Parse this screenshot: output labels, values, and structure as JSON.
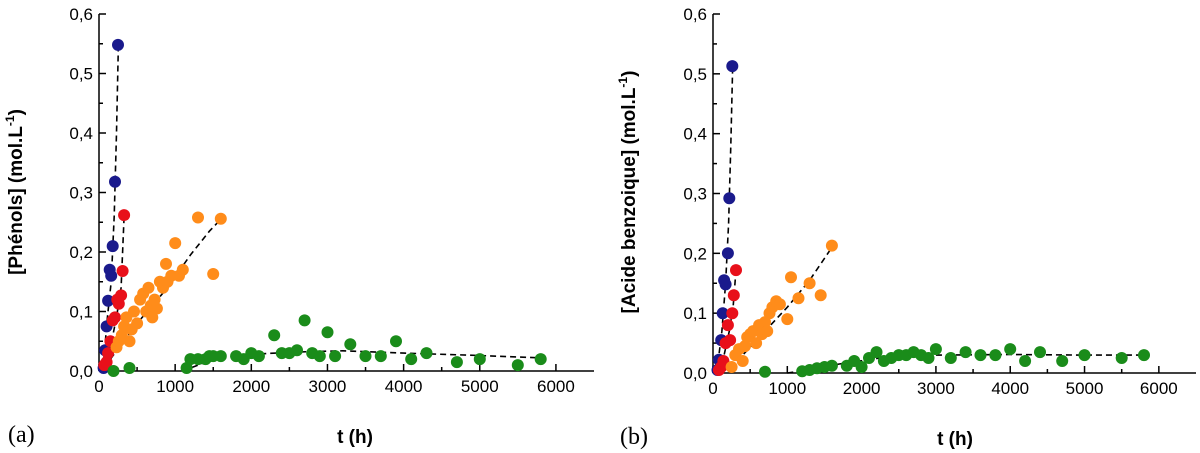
{
  "chart_data": [
    {
      "type": "scatter",
      "panel_label": "(a)",
      "xlabel": "t (h)",
      "ylabel_main": "[Phénols] (mol.L",
      "ylabel_sup": "-1",
      "ylabel_close": ")",
      "xlim": [
        0,
        6500
      ],
      "ylim": [
        0,
        0.6
      ],
      "xticks": [
        0,
        1000,
        2000,
        3000,
        4000,
        5000,
        6000
      ],
      "yticks": [
        0.0,
        0.1,
        0.2,
        0.3,
        0.4,
        0.5,
        0.6
      ],
      "xtick_labels": [
        "0",
        "1000",
        "2000",
        "3000",
        "4000",
        "5000",
        "6000"
      ],
      "ytick_labels": [
        "0,0",
        "0,1",
        "0,2",
        "0,3",
        "0,4",
        "0,5",
        "0,6"
      ],
      "series": [
        {
          "name": "blue",
          "color": "#1a1a8c",
          "points": [
            [
              60,
              0.005
            ],
            [
              80,
              0.035
            ],
            [
              100,
              0.075
            ],
            [
              120,
              0.118
            ],
            [
              140,
              0.17
            ],
            [
              160,
              0.16
            ],
            [
              180,
              0.21
            ],
            [
              210,
              0.318
            ],
            [
              250,
              0.548
            ]
          ],
          "fit": [
            [
              50,
              0
            ],
            [
              110,
              0.09
            ],
            [
              160,
              0.15
            ],
            [
              200,
              0.26
            ],
            [
              230,
              0.4
            ],
            [
              255,
              0.55
            ]
          ]
        },
        {
          "name": "red",
          "color": "#e8101a",
          "points": [
            [
              70,
              0.01
            ],
            [
              100,
              0.015
            ],
            [
              120,
              0.03
            ],
            [
              150,
              0.05
            ],
            [
              180,
              0.085
            ],
            [
              210,
              0.09
            ],
            [
              240,
              0.12
            ],
            [
              260,
              0.113
            ],
            [
              290,
              0.127
            ],
            [
              310,
              0.168
            ],
            [
              330,
              0.262
            ]
          ],
          "fit": [
            [
              50,
              0
            ],
            [
              150,
              0.04
            ],
            [
              230,
              0.09
            ],
            [
              290,
              0.14
            ],
            [
              330,
              0.26
            ]
          ]
        },
        {
          "name": "orange",
          "color": "#ff8c1a",
          "points": [
            [
              230,
              0.04
            ],
            [
              260,
              0.05
            ],
            [
              300,
              0.06
            ],
            [
              330,
              0.075
            ],
            [
              360,
              0.09
            ],
            [
              400,
              0.05
            ],
            [
              430,
              0.07
            ],
            [
              460,
              0.1
            ],
            [
              500,
              0.08
            ],
            [
              540,
              0.12
            ],
            [
              580,
              0.13
            ],
            [
              620,
              0.1
            ],
            [
              650,
              0.14
            ],
            [
              680,
              0.11
            ],
            [
              700,
              0.09
            ],
            [
              730,
              0.12
            ],
            [
              760,
              0.105
            ],
            [
              800,
              0.15
            ],
            [
              840,
              0.14
            ],
            [
              880,
              0.18
            ],
            [
              900,
              0.15
            ],
            [
              950,
              0.16
            ],
            [
              1000,
              0.215
            ],
            [
              1050,
              0.16
            ],
            [
              1100,
              0.17
            ],
            [
              1300,
              0.258
            ],
            [
              1500,
              0.163
            ],
            [
              1600,
              0.256
            ]
          ],
          "fit": [
            [
              150,
              0.02
            ],
            [
              500,
              0.08
            ],
            [
              900,
              0.14
            ],
            [
              1200,
              0.195
            ],
            [
              1450,
              0.235
            ],
            [
              1620,
              0.258
            ]
          ]
        },
        {
          "name": "green",
          "color": "#1a8c1a",
          "points": [
            [
              190,
              0.0
            ],
            [
              400,
              0.005
            ],
            [
              1150,
              0.005
            ],
            [
              1200,
              0.02
            ],
            [
              1300,
              0.02
            ],
            [
              1400,
              0.02
            ],
            [
              1450,
              0.025
            ],
            [
              1500,
              0.025
            ],
            [
              1600,
              0.025
            ],
            [
              1800,
              0.025
            ],
            [
              1900,
              0.02
            ],
            [
              2000,
              0.03
            ],
            [
              2100,
              0.025
            ],
            [
              2300,
              0.06
            ],
            [
              2400,
              0.03
            ],
            [
              2500,
              0.03
            ],
            [
              2600,
              0.035
            ],
            [
              2700,
              0.085
            ],
            [
              2800,
              0.03
            ],
            [
              2900,
              0.025
            ],
            [
              3000,
              0.065
            ],
            [
              3100,
              0.025
            ],
            [
              3300,
              0.045
            ],
            [
              3500,
              0.025
            ],
            [
              3700,
              0.025
            ],
            [
              3900,
              0.05
            ],
            [
              4100,
              0.02
            ],
            [
              4300,
              0.03
            ],
            [
              4700,
              0.015
            ],
            [
              5000,
              0.02
            ],
            [
              5500,
              0.01
            ],
            [
              5800,
              0.02
            ]
          ],
          "fit": [
            [
              1100,
              0.0
            ],
            [
              1300,
              0.01
            ],
            [
              1500,
              0.02
            ],
            [
              2000,
              0.028
            ],
            [
              2600,
              0.032
            ],
            [
              3200,
              0.034
            ],
            [
              4000,
              0.03
            ],
            [
              5000,
              0.026
            ],
            [
              5800,
              0.022
            ]
          ]
        }
      ]
    },
    {
      "type": "scatter",
      "panel_label": "(b)",
      "xlabel": "t (h)",
      "ylabel_main": "[Acide benzoique] (mol.L",
      "ylabel_sup": "-1",
      "ylabel_close": ")",
      "xlim": [
        0,
        6500
      ],
      "ylim": [
        0,
        0.6
      ],
      "xticks": [
        0,
        1000,
        2000,
        3000,
        4000,
        5000,
        6000
      ],
      "yticks": [
        0.0,
        0.1,
        0.2,
        0.3,
        0.4,
        0.5,
        0.6
      ],
      "xtick_labels": [
        "0",
        "1000",
        "2000",
        "3000",
        "4000",
        "5000",
        "6000"
      ],
      "ytick_labels": [
        "0,0",
        "0,1",
        "0,2",
        "0,3",
        "0,4",
        "0,5",
        "0,6"
      ],
      "series": [
        {
          "name": "blue",
          "color": "#1a1a8c",
          "points": [
            [
              60,
              0.005
            ],
            [
              80,
              0.022
            ],
            [
              110,
              0.055
            ],
            [
              130,
              0.1
            ],
            [
              150,
              0.155
            ],
            [
              170,
              0.148
            ],
            [
              200,
              0.2
            ],
            [
              220,
              0.292
            ],
            [
              260,
              0.513
            ]
          ],
          "fit": [
            [
              50,
              0
            ],
            [
              120,
              0.07
            ],
            [
              170,
              0.15
            ],
            [
              210,
              0.25
            ],
            [
              240,
              0.38
            ],
            [
              265,
              0.515
            ]
          ]
        },
        {
          "name": "red",
          "color": "#e8101a",
          "points": [
            [
              80,
              0.005
            ],
            [
              110,
              0.01
            ],
            [
              140,
              0.02
            ],
            [
              170,
              0.05
            ],
            [
              200,
              0.08
            ],
            [
              230,
              0.055
            ],
            [
              260,
              0.1
            ],
            [
              280,
              0.13
            ],
            [
              310,
              0.172
            ]
          ],
          "fit": [
            [
              50,
              0
            ],
            [
              150,
              0.03
            ],
            [
              220,
              0.07
            ],
            [
              270,
              0.11
            ],
            [
              310,
              0.172
            ]
          ]
        },
        {
          "name": "orange",
          "color": "#ff8c1a",
          "points": [
            [
              250,
              0.01
            ],
            [
              300,
              0.03
            ],
            [
              350,
              0.04
            ],
            [
              400,
              0.02
            ],
            [
              430,
              0.045
            ],
            [
              460,
              0.06
            ],
            [
              500,
              0.065
            ],
            [
              540,
              0.07
            ],
            [
              580,
              0.05
            ],
            [
              620,
              0.08
            ],
            [
              660,
              0.065
            ],
            [
              700,
              0.085
            ],
            [
              730,
              0.07
            ],
            [
              760,
              0.1
            ],
            [
              800,
              0.11
            ],
            [
              850,
              0.12
            ],
            [
              900,
              0.115
            ],
            [
              1000,
              0.09
            ],
            [
              1050,
              0.16
            ],
            [
              1150,
              0.125
            ],
            [
              1300,
              0.15
            ],
            [
              1450,
              0.13
            ],
            [
              1600,
              0.213
            ]
          ],
          "fit": [
            [
              100,
              0
            ],
            [
              400,
              0.03
            ],
            [
              700,
              0.07
            ],
            [
              1000,
              0.11
            ],
            [
              1300,
              0.155
            ],
            [
              1600,
              0.21
            ]
          ]
        },
        {
          "name": "green",
          "color": "#1a8c1a",
          "points": [
            [
              700,
              0.002
            ],
            [
              1200,
              0.003
            ],
            [
              1300,
              0.005
            ],
            [
              1400,
              0.008
            ],
            [
              1500,
              0.01
            ],
            [
              1600,
              0.012
            ],
            [
              1800,
              0.012
            ],
            [
              1900,
              0.02
            ],
            [
              2000,
              0.01
            ],
            [
              2100,
              0.025
            ],
            [
              2200,
              0.035
            ],
            [
              2300,
              0.02
            ],
            [
              2400,
              0.025
            ],
            [
              2500,
              0.03
            ],
            [
              2600,
              0.03
            ],
            [
              2700,
              0.035
            ],
            [
              2800,
              0.03
            ],
            [
              2900,
              0.025
            ],
            [
              3000,
              0.04
            ],
            [
              3200,
              0.025
            ],
            [
              3400,
              0.035
            ],
            [
              3600,
              0.03
            ],
            [
              3800,
              0.03
            ],
            [
              4000,
              0.04
            ],
            [
              4200,
              0.02
            ],
            [
              4400,
              0.035
            ],
            [
              4700,
              0.02
            ],
            [
              5000,
              0.03
            ],
            [
              5500,
              0.025
            ],
            [
              5800,
              0.03
            ]
          ],
          "fit": [
            [
              1000,
              0.0
            ],
            [
              1300,
              0.005
            ],
            [
              1700,
              0.015
            ],
            [
              2300,
              0.026
            ],
            [
              3000,
              0.03
            ],
            [
              4000,
              0.031
            ],
            [
              5000,
              0.03
            ],
            [
              5800,
              0.03
            ]
          ]
        }
      ]
    }
  ]
}
